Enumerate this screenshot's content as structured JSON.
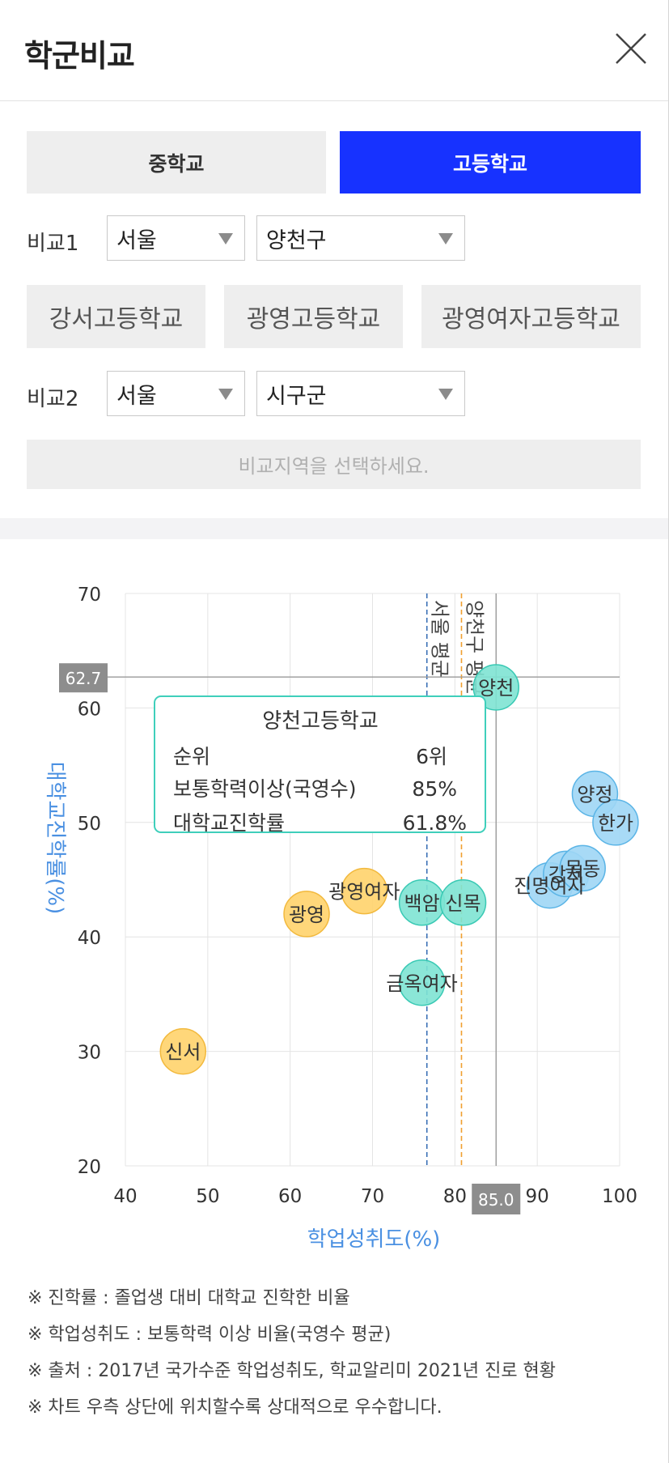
{
  "header": {
    "title": "학군비교"
  },
  "tabs": [
    {
      "label": "중학교"
    },
    {
      "label": "고등학교"
    }
  ],
  "compare1": {
    "label": "비교1",
    "region": "서울",
    "district": "양천구",
    "schools": [
      "강서고등학교",
      "광영고등학교",
      "광영여자고등학교"
    ]
  },
  "compare2": {
    "label": "비교2",
    "region": "서울",
    "district": "시구군",
    "hint": "비교지역을 선택하세요."
  },
  "chart_data": {
    "type": "scatter",
    "xlabel": "학업성취도(%)",
    "ylabel": "대학교진학률(%)",
    "xlim": [
      40,
      100
    ],
    "ylim": [
      20,
      70
    ],
    "xticks": [
      40,
      50,
      60,
      70,
      80,
      90,
      100
    ],
    "yticks": [
      20,
      30,
      40,
      50,
      60,
      70
    ],
    "grid": true,
    "crosshair": {
      "x": 85.0,
      "y": 62.7,
      "x_label": "85.0",
      "y_label": "62.7"
    },
    "reference_lines": [
      {
        "label": "서울 평균",
        "x": 76.6,
        "color": "#3a6fb5"
      },
      {
        "label": "양천구 평균",
        "x": 80.8,
        "color": "#f0a030"
      }
    ],
    "series": [
      {
        "color": "#ffd36b",
        "stroke": "#f2b93d",
        "points": [
          {
            "label": "신서",
            "x": 47.0,
            "y": 30.0
          },
          {
            "label": "광영",
            "x": 62.0,
            "y": 42.0
          },
          {
            "label": "광영여자",
            "x": 69.0,
            "y": 44.0
          }
        ]
      },
      {
        "color": "#7ee3d3",
        "stroke": "#39c9b4",
        "points": [
          {
            "label": "금옥여자",
            "x": 76.0,
            "y": 36.0
          },
          {
            "label": "백암",
            "x": 76.0,
            "y": 43.0
          },
          {
            "label": "신목",
            "x": 81.0,
            "y": 43.0
          },
          {
            "label": "양천",
            "x": 85.0,
            "y": 61.8
          }
        ]
      },
      {
        "color": "#9fd6f5",
        "stroke": "#5ab4e6",
        "points": [
          {
            "label": "진명여자",
            "x": 91.5,
            "y": 44.5
          },
          {
            "label": "강서",
            "x": 93.5,
            "y": 45.5
          },
          {
            "label": "목동",
            "x": 95.5,
            "y": 46.0
          },
          {
            "label": "양정",
            "x": 97.0,
            "y": 52.5
          },
          {
            "label": "한가",
            "x": 99.5,
            "y": 50.0
          }
        ]
      }
    ],
    "tooltip": {
      "title": "양천고등학교",
      "rows": [
        {
          "label": "순위",
          "value": "6위"
        },
        {
          "label": "보통학력이상(국영수)",
          "value": "85%"
        },
        {
          "label": "대학교진학률",
          "value": "61.8%"
        }
      ]
    }
  },
  "notes": [
    "※ 진학률 : 졸업생 대비 대학교 진학한 비율",
    "※ 학업성취도 : 보통학력 이상 비율(국영수 평균)",
    "※ 출처 : 2017년 국가수준 학업성취도, 학교알리미 2021년 진로 현황",
    "※ 차트 우측 상단에 위치할수록 상대적으로 우수합니다."
  ],
  "colors": {
    "accent": "#1732ff",
    "axis_label": "#4a90e2",
    "tooltip_border": "#3fcfbb"
  }
}
